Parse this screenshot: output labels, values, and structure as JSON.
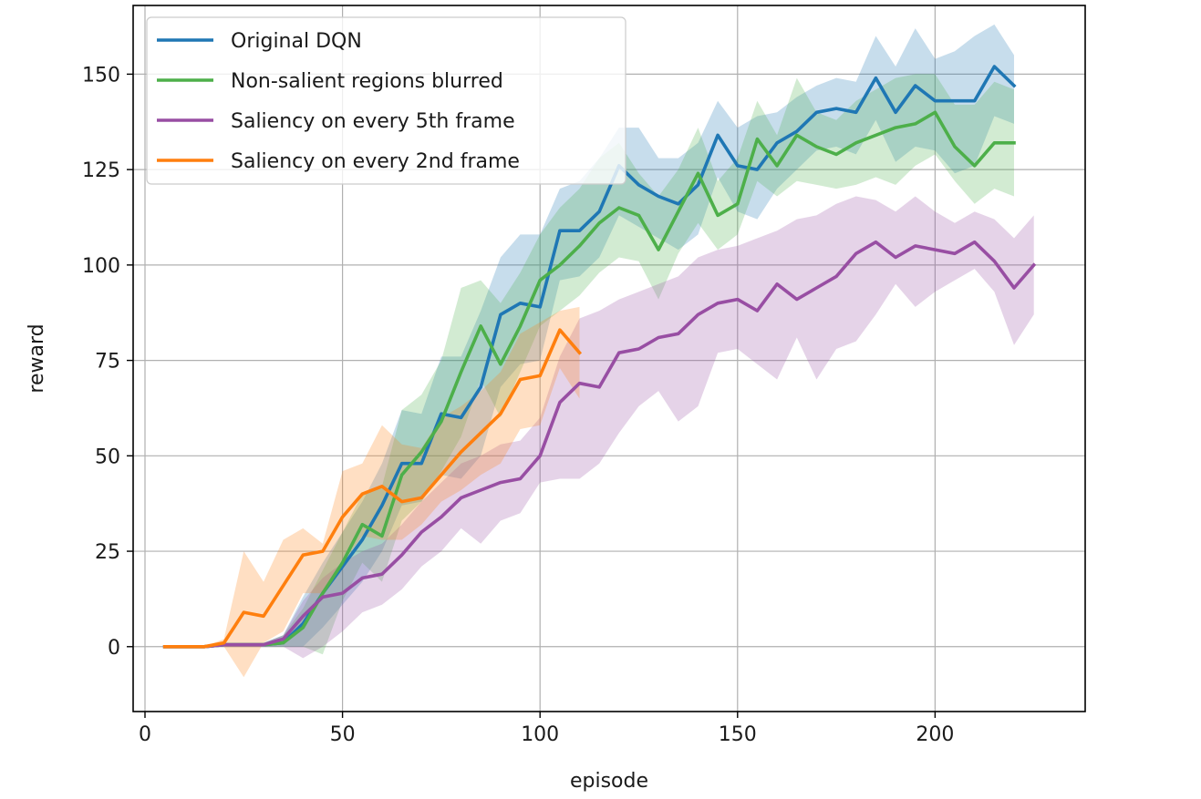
{
  "chart_data": {
    "type": "line",
    "xlabel": "episode",
    "ylabel": "reward",
    "xlim": [
      -3,
      238
    ],
    "ylim": [
      -17,
      168
    ],
    "xticks": [
      0,
      50,
      100,
      150,
      200
    ],
    "yticks": [
      0,
      25,
      50,
      75,
      100,
      125,
      150
    ],
    "grid": true,
    "legend_position": "top-left",
    "series": [
      {
        "name": "Original DQN",
        "color": "#1f77b4",
        "x": [
          5,
          10,
          15,
          20,
          25,
          30,
          35,
          40,
          45,
          50,
          55,
          60,
          65,
          70,
          75,
          80,
          85,
          90,
          95,
          100,
          105,
          110,
          115,
          120,
          125,
          130,
          135,
          140,
          145,
          150,
          155,
          160,
          165,
          170,
          175,
          180,
          185,
          190,
          195,
          200,
          205,
          210,
          215,
          220
        ],
        "y": [
          0,
          0,
          0,
          0.5,
          0.5,
          0.5,
          1,
          6,
          14,
          21,
          28,
          37,
          48,
          48,
          61,
          60,
          68,
          87,
          90,
          89,
          109,
          109,
          114,
          126,
          121,
          118,
          116,
          121,
          134,
          126,
          125,
          132,
          135,
          140,
          141,
          140,
          149,
          140,
          147,
          143,
          143,
          143,
          152,
          147
        ],
        "upper": [
          0,
          0,
          0,
          1,
          1,
          1,
          3,
          13,
          22,
          30,
          38,
          48,
          62,
          61,
          76,
          76,
          88,
          102,
          108,
          108,
          120,
          122,
          128,
          136,
          136,
          128,
          128,
          132,
          143,
          136,
          139,
          140,
          144,
          147,
          149,
          148,
          160,
          152,
          162,
          154,
          156,
          160,
          163,
          155
        ],
        "lower": [
          0,
          0,
          0,
          0,
          0,
          0,
          0,
          0,
          5,
          11,
          17,
          25,
          37,
          38,
          45,
          44,
          50,
          68,
          74,
          75,
          96,
          97,
          102,
          113,
          110,
          107,
          104,
          108,
          123,
          114,
          112,
          120,
          125,
          130,
          131,
          129,
          138,
          127,
          131,
          130,
          124,
          126,
          139,
          137
        ]
      },
      {
        "name": "Non-salient regions blurred",
        "color": "#4daf4a",
        "x": [
          5,
          10,
          15,
          20,
          25,
          30,
          35,
          40,
          45,
          50,
          55,
          60,
          65,
          70,
          75,
          80,
          85,
          90,
          95,
          100,
          105,
          110,
          115,
          120,
          125,
          130,
          135,
          140,
          145,
          150,
          155,
          160,
          165,
          170,
          175,
          180,
          185,
          190,
          195,
          200,
          205,
          210,
          215,
          220
        ],
        "y": [
          0,
          0,
          0,
          0.5,
          0.5,
          0.5,
          1,
          5,
          14,
          22,
          32,
          29,
          45,
          51,
          59,
          72,
          84,
          74,
          84,
          96,
          100,
          105,
          111,
          115,
          113,
          104,
          114,
          124,
          113,
          116,
          133,
          126,
          134,
          131,
          129,
          132,
          134,
          136,
          137,
          140,
          131,
          126,
          132,
          132
        ],
        "upper": [
          0,
          0,
          0,
          1,
          1,
          1,
          3,
          10,
          20,
          30,
          40,
          42,
          62,
          66,
          75,
          94,
          96,
          90,
          98,
          108,
          115,
          120,
          128,
          132,
          124,
          118,
          125,
          136,
          122,
          128,
          143,
          134,
          149,
          140,
          138,
          143,
          146,
          149,
          150,
          150,
          142,
          142,
          148,
          146
        ],
        "lower": [
          0,
          0,
          0,
          0,
          0,
          0,
          0,
          0,
          -2,
          12,
          22,
          17,
          33,
          38,
          46,
          55,
          70,
          60,
          72,
          84,
          88,
          92,
          98,
          102,
          101,
          91,
          103,
          111,
          104,
          108,
          122,
          118,
          122,
          121,
          120,
          121,
          123,
          121,
          126,
          129,
          122,
          116,
          120,
          118
        ]
      },
      {
        "name": "Saliency on every 5th frame",
        "color": "#984ea3",
        "x": [
          5,
          10,
          15,
          20,
          25,
          30,
          35,
          40,
          45,
          50,
          55,
          60,
          65,
          70,
          75,
          80,
          85,
          90,
          95,
          100,
          105,
          110,
          115,
          120,
          125,
          130,
          135,
          140,
          145,
          150,
          155,
          160,
          165,
          170,
          175,
          180,
          185,
          190,
          195,
          200,
          205,
          210,
          215,
          220,
          225
        ],
        "y": [
          0,
          0,
          0,
          0.5,
          0.5,
          0.5,
          2,
          8,
          13,
          14,
          18,
          19,
          24,
          30,
          34,
          39,
          41,
          43,
          44,
          50,
          64,
          69,
          68,
          77,
          78,
          81,
          82,
          87,
          90,
          91,
          88,
          95,
          91,
          94,
          97,
          103,
          106,
          102,
          105,
          104,
          103,
          106,
          101,
          94,
          100
        ],
        "upper": [
          0,
          0,
          0,
          1,
          1,
          1,
          3,
          12,
          18,
          22,
          25,
          27,
          32,
          38,
          43,
          48,
          50,
          53,
          54,
          60,
          76,
          86,
          88,
          91,
          93,
          95,
          97,
          102,
          104,
          105,
          107,
          109,
          112,
          113,
          116,
          118,
          117,
          114,
          118,
          114,
          111,
          114,
          112,
          107,
          113
        ],
        "lower": [
          0,
          0,
          0,
          0,
          0,
          0,
          0,
          -3,
          0,
          4,
          9,
          11,
          15,
          21,
          25,
          31,
          27,
          33,
          35,
          43,
          44,
          44,
          48,
          56,
          63,
          67,
          59,
          63,
          77,
          78,
          74,
          70,
          81,
          70,
          78,
          80,
          87,
          95,
          89,
          93,
          96,
          99,
          93,
          79,
          87
        ]
      },
      {
        "name": "Saliency on every 2nd frame",
        "color": "#ff7f0e",
        "x": [
          5,
          10,
          15,
          20,
          25,
          30,
          35,
          40,
          45,
          50,
          55,
          60,
          65,
          70,
          75,
          80,
          85,
          90,
          95,
          100,
          105,
          110
        ],
        "y": [
          0,
          0,
          0,
          1,
          9,
          8,
          16,
          24,
          25,
          34,
          40,
          42,
          38,
          39,
          45,
          51,
          56,
          61,
          70,
          71,
          83,
          77
        ],
        "upper": [
          0,
          0,
          0,
          2,
          25,
          17,
          28,
          31,
          27,
          46,
          48,
          58,
          53,
          52,
          60,
          63,
          67,
          72,
          82,
          85,
          88,
          89
        ],
        "lower": [
          0,
          0,
          0,
          0,
          -8,
          1,
          4,
          14,
          14,
          22,
          29,
          28,
          28,
          32,
          38,
          41,
          45,
          48,
          57,
          58,
          73,
          65
        ]
      }
    ]
  }
}
